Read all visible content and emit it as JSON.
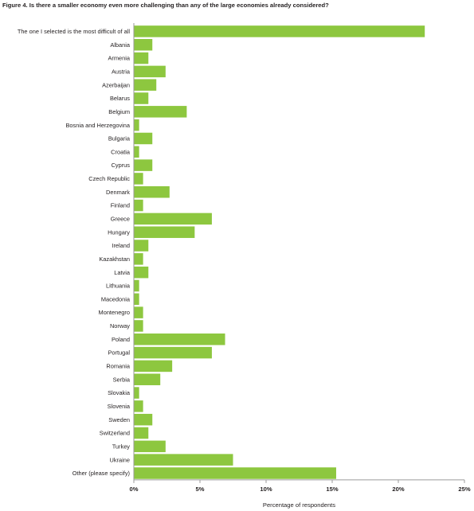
{
  "title": "Figure 4. Is there a smaller economy even more challenging than any of the large economies already considered?",
  "colors": {
    "bar": "#8dc73f",
    "axis": "#9a9a9a",
    "text": "#231f20"
  },
  "chart_data": {
    "type": "bar",
    "orientation": "horizontal",
    "title": "Figure 4. Is there a smaller economy even more challenging than any of the large economies already considered?",
    "xlabel": "Percentage of respondents",
    "ylabel": "",
    "xlim": [
      0,
      25
    ],
    "xticks": [
      "0%",
      "5%",
      "10%",
      "15%",
      "20%",
      "25%"
    ],
    "tick_values": [
      0,
      5,
      10,
      15,
      20,
      25
    ],
    "grid": false,
    "categories": [
      "The one I selected is the most difficult of all",
      "Albania",
      "Armenia",
      "Austria",
      "Azerbaijan",
      "Belarus",
      "Belgium",
      "Bosnia and Herzegovina",
      "Bulgaria",
      "Croatia",
      "Cyprus",
      "Czech Republic",
      "Denmark",
      "Finland",
      "Greece",
      "Hungary",
      "Ireland",
      "Kazakhstan",
      "Latvia",
      "Lithuania",
      "Macedonia",
      "Montenegro",
      "Norway",
      "Poland",
      "Portugal",
      "Romania",
      "Serbia",
      "Slovakia",
      "Slovenia",
      "Sweden",
      "Switzerland",
      "Turkey",
      "Ukraine",
      "Other (please specify)"
    ],
    "values": [
      22.0,
      1.4,
      1.1,
      2.4,
      1.7,
      1.1,
      4.0,
      0.4,
      1.4,
      0.4,
      1.4,
      0.7,
      2.7,
      0.7,
      5.9,
      4.6,
      1.1,
      0.7,
      1.1,
      0.4,
      0.4,
      0.7,
      0.7,
      6.9,
      5.9,
      2.9,
      2.0,
      0.4,
      0.7,
      1.4,
      1.1,
      2.4,
      7.5,
      15.3
    ]
  }
}
